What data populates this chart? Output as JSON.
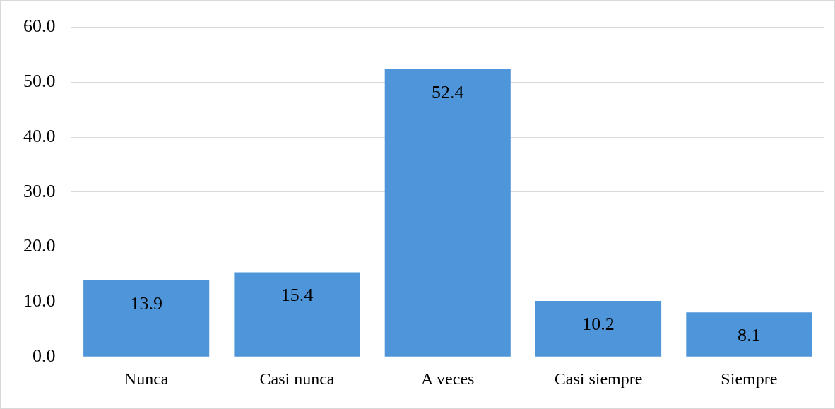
{
  "chart_data": {
    "type": "bar",
    "categories": [
      "Nunca",
      "Casi nunca",
      "A veces",
      "Casi siempre",
      "Siempre"
    ],
    "values": [
      13.9,
      15.4,
      52.4,
      10.2,
      8.1
    ],
    "color": "#4f95d9",
    "ylim": [
      0,
      60
    ],
    "yticks": [
      {
        "value": 0,
        "label": "0.0"
      },
      {
        "value": 10,
        "label": "10.0"
      },
      {
        "value": 20,
        "label": "20.0"
      },
      {
        "value": 30,
        "label": "30.0"
      },
      {
        "value": 40,
        "label": "40.0"
      },
      {
        "value": 50,
        "label": "50.0"
      },
      {
        "value": 60,
        "label": "60.0"
      }
    ],
    "grid": "y",
    "data_labels": true,
    "legend": false
  }
}
